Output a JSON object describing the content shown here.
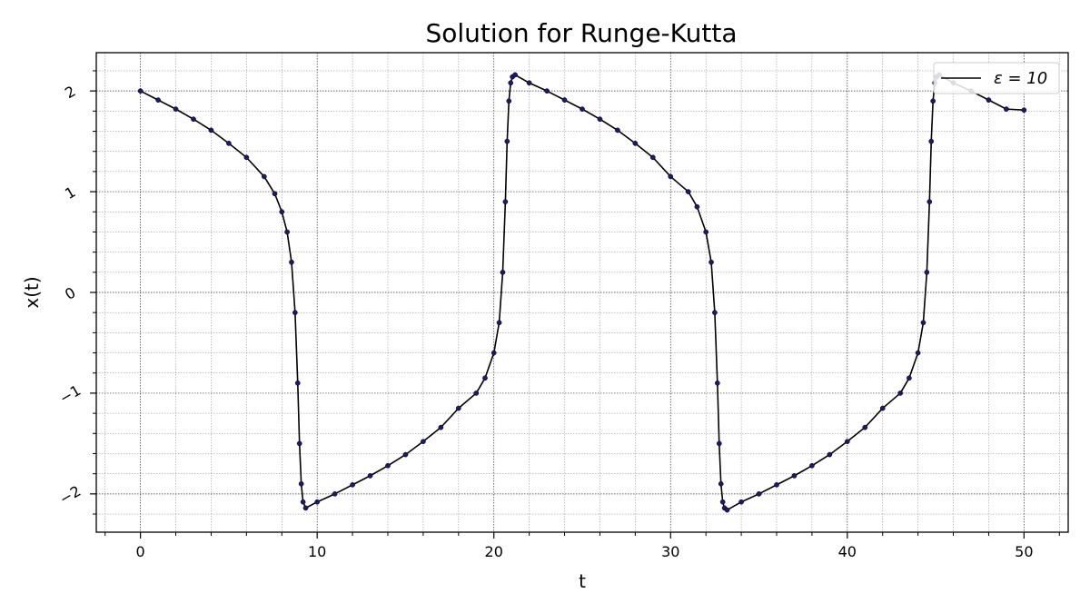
{
  "chart_data": {
    "type": "line",
    "title": "Solution for Runge-Kutta",
    "xlabel": "t",
    "ylabel": "x(t)",
    "xlim": [
      -2.5,
      52.5
    ],
    "ylim": [
      -2.38,
      2.38
    ],
    "xticks": [
      0,
      10,
      20,
      30,
      40,
      50
    ],
    "yticks": [
      -2,
      -1,
      0,
      1,
      2
    ],
    "xtick_labels": [
      "0",
      "10",
      "20",
      "30",
      "40",
      "50"
    ],
    "ytick_labels": [
      "−2",
      "−1",
      "0",
      "1",
      "2"
    ],
    "grid": true,
    "minor_grid": true,
    "legend_position": "top-right",
    "series": [
      {
        "name": "ε = 10",
        "color": "#000000",
        "marker_color": "#1a1a6e",
        "x": [
          0,
          1,
          2,
          3,
          4,
          5,
          6,
          7,
          7.6,
          8.0,
          8.3,
          8.55,
          8.75,
          8.9,
          9.0,
          9.1,
          9.2,
          9.35,
          10,
          11,
          12,
          13,
          14,
          15,
          16,
          17,
          18,
          19,
          19.5,
          20.0,
          20.3,
          20.5,
          20.65,
          20.75,
          20.85,
          20.95,
          21.05,
          21.2,
          22,
          23,
          24,
          25,
          26,
          27,
          28,
          29,
          30,
          31,
          31.5,
          32.0,
          32.3,
          32.5,
          32.65,
          32.75,
          32.85,
          32.95,
          33.05,
          33.2,
          34,
          35,
          36,
          37,
          38,
          39,
          40,
          41,
          42,
          43,
          43.5,
          44.0,
          44.3,
          44.5,
          44.65,
          44.75,
          44.85,
          44.95,
          45.05,
          45.2,
          46,
          47,
          48,
          49,
          50
        ],
        "y": [
          2.0,
          1.91,
          1.82,
          1.72,
          1.61,
          1.48,
          1.34,
          1.15,
          0.98,
          0.8,
          0.6,
          0.3,
          -0.2,
          -0.9,
          -1.5,
          -1.9,
          -2.08,
          -2.14,
          -2.08,
          -2.0,
          -1.91,
          -1.82,
          -1.72,
          -1.61,
          -1.48,
          -1.34,
          -1.15,
          -1.0,
          -0.85,
          -0.6,
          -0.3,
          0.2,
          0.9,
          1.5,
          1.9,
          2.08,
          2.14,
          2.16,
          2.08,
          2.0,
          1.91,
          1.82,
          1.72,
          1.61,
          1.48,
          1.34,
          1.15,
          1.0,
          0.85,
          0.6,
          0.3,
          -0.2,
          -0.9,
          -1.5,
          -1.9,
          -2.08,
          -2.14,
          -2.16,
          -2.08,
          -2.0,
          -1.91,
          -1.82,
          -1.72,
          -1.61,
          -1.48,
          -1.34,
          -1.15,
          -1.0,
          -0.85,
          -0.6,
          -0.3,
          0.2,
          0.9,
          1.5,
          1.9,
          2.08,
          2.14,
          2.16,
          2.08,
          2.0,
          1.91,
          1.82,
          1.81
        ]
      }
    ]
  }
}
